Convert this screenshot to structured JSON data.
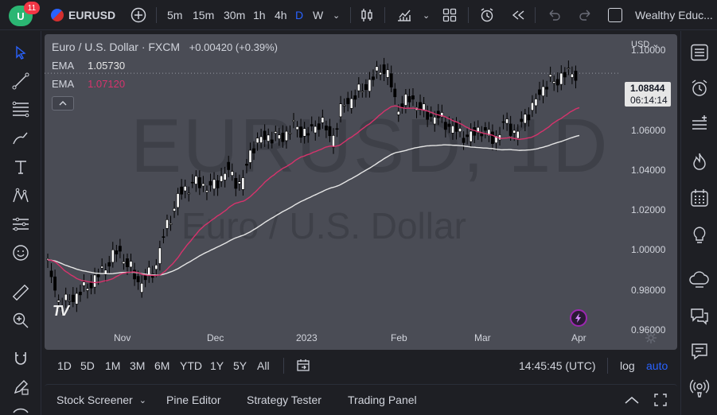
{
  "topbar": {
    "notifications": "11",
    "symbol": "EURUSD",
    "intervals": [
      "5m",
      "15m",
      "30m",
      "1h",
      "4h",
      "D",
      "W"
    ],
    "active_interval": "D",
    "account_label": "Wealthy Educ..."
  },
  "chart": {
    "title": "Euro / U.S. Dollar · FXCM",
    "change": "+0.00420 (+0.39%)",
    "currency": "USD",
    "watermark_symbol": "EURUSD, 1D",
    "watermark_name": "Euro / U.S. Dollar",
    "indicators": [
      {
        "name": "EMA",
        "value": "1.05730",
        "color": "#e6e6e6"
      },
      {
        "name": "EMA",
        "value": "1.07120",
        "color": "#d6336c"
      }
    ],
    "price_tag": {
      "price": "1.08844",
      "countdown": "06:14:14"
    },
    "brand_badge": "TV"
  },
  "chart_data": {
    "type": "candlestick",
    "instrument": "EUR/USD",
    "ylim": [
      0.95,
      1.108
    ],
    "y_ticks": [
      "1.10000",
      "1.08000",
      "1.06000",
      "1.04000",
      "1.02000",
      "1.00000",
      "0.98000",
      "0.96000"
    ],
    "x_ticks": [
      "Nov",
      "Dec",
      "2023",
      "Feb",
      "Mar",
      "Apr"
    ],
    "last_price": 1.08844,
    "ema_slow": 1.0573,
    "ema_fast": 1.0712,
    "colors": {
      "up": "#ffffff",
      "down": "#000000",
      "ema_slow": "#e6e6e6",
      "ema_fast": "#d6336c",
      "background": "#4a4c55"
    }
  },
  "bottombar": {
    "ranges": [
      "1D",
      "5D",
      "1M",
      "3M",
      "6M",
      "YTD",
      "1Y",
      "5Y",
      "All"
    ],
    "time": "14:45:45 (UTC)",
    "log": "log",
    "auto": "auto"
  },
  "panels": {
    "items": [
      "Stock Screener",
      "Pine Editor",
      "Strategy Tester",
      "Trading Panel"
    ]
  }
}
